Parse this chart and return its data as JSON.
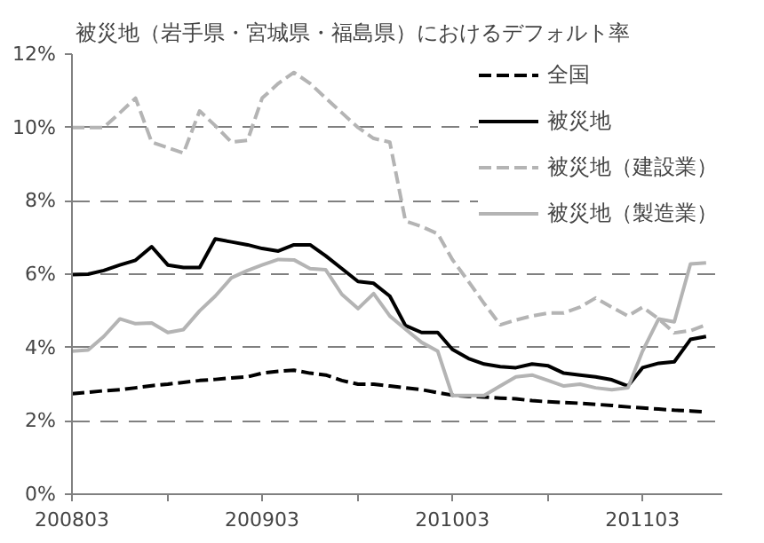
{
  "chart_data": {
    "type": "line",
    "title": "被災地（岩手県・宮城県・福島県）におけるデフォルト率",
    "x": [
      "2008-03",
      "2008-04",
      "2008-05",
      "2008-06",
      "2008-07",
      "2008-08",
      "2008-09",
      "2008-10",
      "2008-11",
      "2008-12",
      "2009-01",
      "2009-02",
      "2009-03",
      "2009-04",
      "2009-05",
      "2009-06",
      "2009-07",
      "2009-08",
      "2009-09",
      "2009-10",
      "2009-11",
      "2009-12",
      "2010-01",
      "2010-02",
      "2010-03",
      "2010-04",
      "2010-05",
      "2010-06",
      "2010-07",
      "2010-08",
      "2010-09",
      "2010-10",
      "2010-11",
      "2010-12",
      "2011-01",
      "2011-02",
      "2011-03",
      "2011-04",
      "2011-05",
      "2011-06",
      "2011-07"
    ],
    "xlim": [
      "2008-03",
      "2011-08"
    ],
    "xticks": [
      {
        "value": "2008-03",
        "label": "200803"
      },
      {
        "value": "2008-09",
        "label": null
      },
      {
        "value": "2009-03",
        "label": "200903"
      },
      {
        "value": "2009-09",
        "label": null
      },
      {
        "value": "2010-03",
        "label": "201003"
      },
      {
        "value": "2010-09",
        "label": null
      },
      {
        "value": "2011-03",
        "label": "201103"
      }
    ],
    "ylim": [
      0,
      12
    ],
    "yticks": [
      {
        "value": 0,
        "label": "0%"
      },
      {
        "value": 2,
        "label": "2%"
      },
      {
        "value": 4,
        "label": "4%"
      },
      {
        "value": 6,
        "label": "6%"
      },
      {
        "value": 8,
        "label": "8%"
      },
      {
        "value": 10,
        "label": "10%"
      },
      {
        "value": 12,
        "label": "12%"
      }
    ],
    "grid": "y",
    "legend": "top right",
    "marker": "none",
    "series": [
      {
        "name": "全国",
        "color": "#000000",
        "line_style": "dashed",
        "values": [
          2.74,
          2.78,
          2.82,
          2.85,
          2.9,
          2.96,
          3.0,
          3.05,
          3.1,
          3.13,
          3.17,
          3.2,
          3.3,
          3.35,
          3.38,
          3.3,
          3.25,
          3.1,
          3.0,
          3.0,
          2.95,
          2.9,
          2.85,
          2.77,
          2.7,
          2.67,
          2.65,
          2.62,
          2.6,
          2.55,
          2.52,
          2.5,
          2.48,
          2.45,
          2.42,
          2.38,
          2.35,
          2.32,
          2.29,
          2.27,
          2.24
        ]
      },
      {
        "name": "被災地",
        "color": "#000000",
        "line_style": "solid",
        "values": [
          5.99,
          6.0,
          6.1,
          6.25,
          6.38,
          6.75,
          6.25,
          6.18,
          6.18,
          6.96,
          6.88,
          6.8,
          6.7,
          6.63,
          6.8,
          6.8,
          6.5,
          6.15,
          5.8,
          5.75,
          5.4,
          4.6,
          4.41,
          4.41,
          3.95,
          3.7,
          3.55,
          3.48,
          3.45,
          3.55,
          3.5,
          3.3,
          3.25,
          3.2,
          3.12,
          2.95,
          3.45,
          3.57,
          3.61,
          4.22,
          4.3
        ]
      },
      {
        "name": "被災地（建設業）",
        "color": "#b4b4b4",
        "line_style": "dashed",
        "values": [
          10.0,
          10.0,
          10.0,
          10.4,
          10.8,
          9.6,
          9.45,
          9.3,
          10.45,
          10.05,
          9.6,
          9.65,
          10.8,
          11.2,
          11.5,
          11.2,
          10.8,
          10.4,
          10.0,
          9.7,
          9.6,
          7.45,
          7.3,
          7.1,
          6.4,
          5.8,
          5.2,
          4.62,
          4.75,
          4.86,
          4.94,
          4.94,
          5.1,
          5.35,
          5.1,
          4.86,
          5.1,
          4.78,
          4.4,
          4.46,
          4.62
        ]
      },
      {
        "name": "被災地（製造業）",
        "color": "#b4b4b4",
        "line_style": "solid",
        "values": [
          3.9,
          3.93,
          4.3,
          4.78,
          4.65,
          4.67,
          4.41,
          4.49,
          5.0,
          5.4,
          5.9,
          6.1,
          6.25,
          6.4,
          6.39,
          6.15,
          6.12,
          5.45,
          5.06,
          5.47,
          4.86,
          4.5,
          4.14,
          3.9,
          2.69,
          2.69,
          2.69,
          2.95,
          3.2,
          3.25,
          3.1,
          2.95,
          3.0,
          2.9,
          2.85,
          2.9,
          3.9,
          4.78,
          4.7,
          6.28,
          6.31
        ]
      }
    ]
  }
}
